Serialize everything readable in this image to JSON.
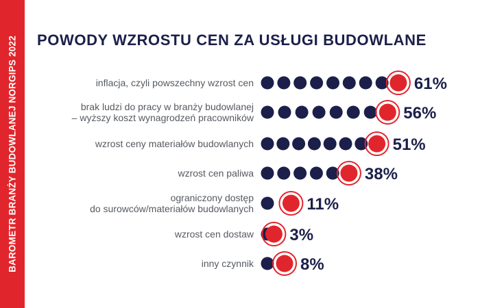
{
  "side_label": "BAROMETR BRANŻY BUDOWLANEJ NORGIPS 2022",
  "colors": {
    "accent": "#e1252c",
    "navy": "#1b1f4a",
    "label_gray": "#55595f"
  },
  "chart_data": {
    "type": "bar",
    "title": "POWODY WZROSTU CEN ZA USŁUGI BUDOWLANE",
    "value_suffix": "%",
    "categories": [
      [
        "inflacja, czyli powszechny wzrost cen"
      ],
      [
        "brak ludzi do pracy w branży budowlanej",
        "– wyższy koszt wynagrodzeń pracowników"
      ],
      [
        "wzrost ceny materiałów budowlanych"
      ],
      [
        "wzrost cen paliwa"
      ],
      [
        "ograniczony dostęp",
        "do surowców/materiałów budowlanych"
      ],
      [
        "wzrost cen dostaw"
      ],
      [
        "inny czynnik"
      ]
    ],
    "values": [
      61,
      56,
      51,
      38,
      11,
      3,
      8
    ],
    "value_labels": [
      "61%",
      "56%",
      "51%",
      "38%",
      "11%",
      "3%",
      "8%"
    ]
  }
}
